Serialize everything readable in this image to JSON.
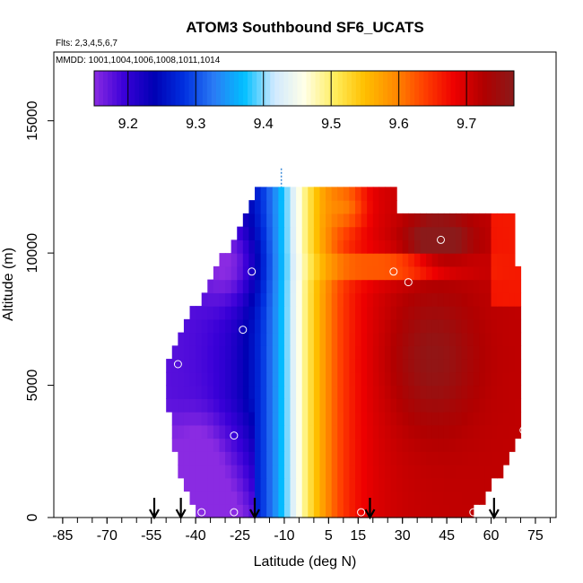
{
  "chart_data": {
    "type": "heatmap",
    "title": "ATOM3 Southbound SF6_UCATS",
    "subtitle_flights": "Flts: 2,3,4,5,6,7",
    "subtitle_dates": "MMDD: 1001,1004,1006,1008,1011,1014",
    "xlabel": "Latitude (deg N)",
    "ylabel": "Altitude (m)",
    "xlim": [
      -88,
      82
    ],
    "ylim": [
      0,
      17600
    ],
    "x_ticks": [
      -85,
      -70,
      -55,
      -40,
      -25,
      -10,
      5,
      15,
      30,
      45,
      60,
      75
    ],
    "y_ticks": [
      0,
      5000,
      10000,
      15000
    ],
    "colorbar": {
      "min": 9.15,
      "max": 9.77,
      "ticks": [
        9.2,
        9.3,
        9.4,
        9.5,
        9.6,
        9.7
      ],
      "colors": [
        "#8a2be2",
        "#3a00d8",
        "#0000b4",
        "#0030e0",
        "#2a7cf5",
        "#00bfff",
        "#cfe9ff",
        "#ffffe8",
        "#ffee60",
        "#ffc000",
        "#ff8c00",
        "#ff4000",
        "#ee0000",
        "#b00000",
        "#8b1a1a"
      ]
    },
    "profile_lat_markers": [
      -54,
      -45,
      -20,
      19,
      61
    ],
    "sample_points": [
      {
        "lat": -38,
        "alt": 200
      },
      {
        "lat": -27,
        "alt": 200
      },
      {
        "lat": 16,
        "alt": 200
      },
      {
        "lat": 54,
        "alt": 200
      },
      {
        "lat": -27,
        "alt": 3100
      },
      {
        "lat": 71,
        "alt": 3300
      },
      {
        "lat": -46,
        "alt": 5800
      },
      {
        "lat": -24,
        "alt": 7100
      },
      {
        "lat": -21,
        "alt": 9300
      },
      {
        "lat": 27,
        "alt": 9300
      },
      {
        "lat": 32,
        "alt": 8900
      },
      {
        "lat": 43,
        "alt": 10500
      }
    ]
  }
}
